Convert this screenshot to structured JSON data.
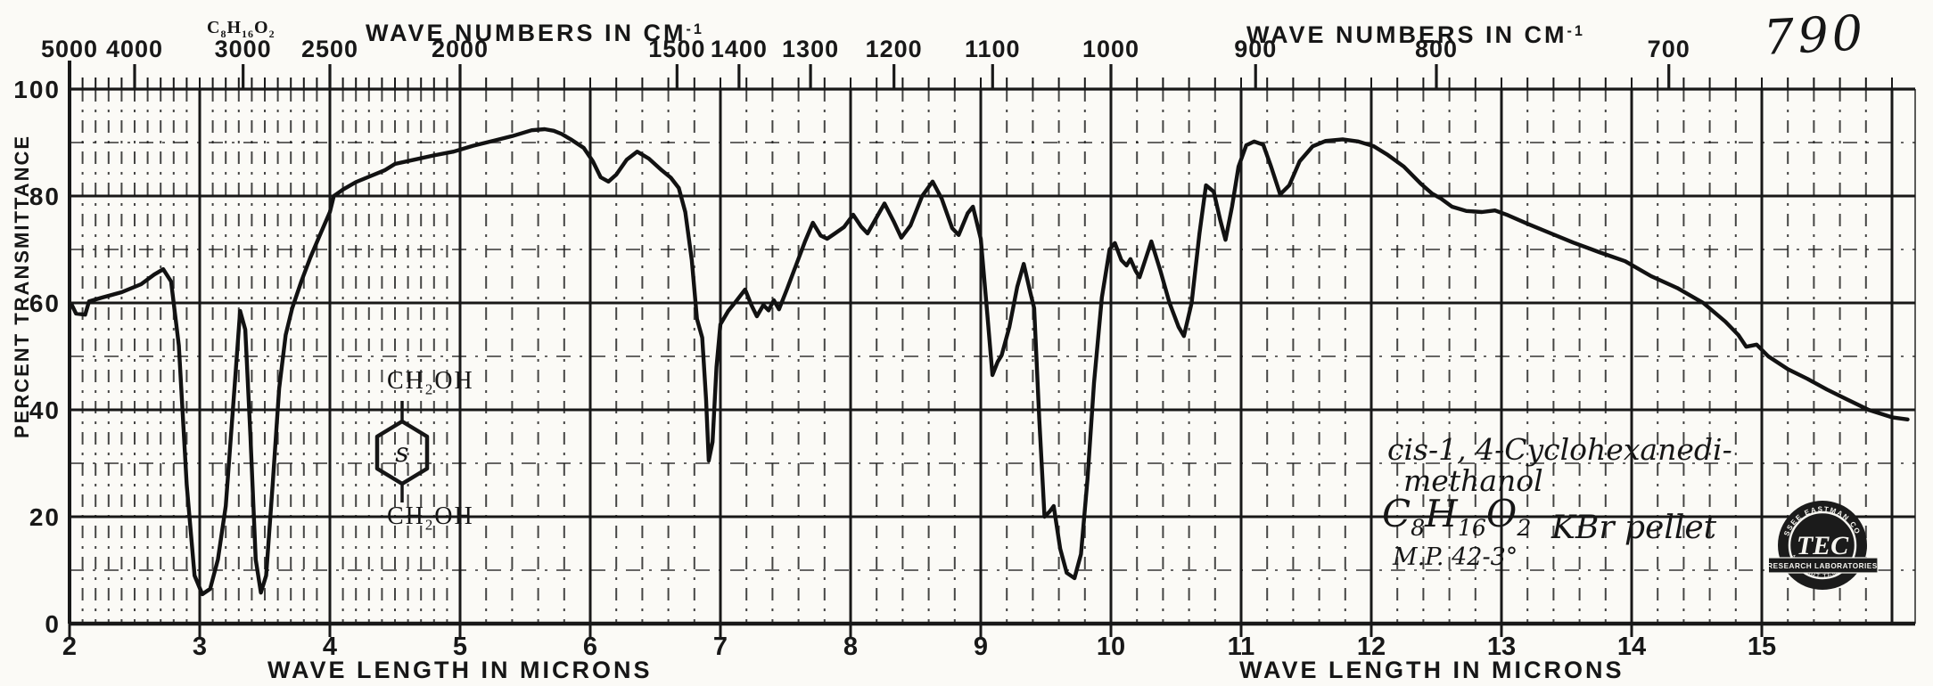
{
  "page": {
    "spectrum_number": "790",
    "formula_stamp": "C8H16O2"
  },
  "chart_data": {
    "type": "line",
    "x_axis_top": {
      "label": "WAVE NUMBERS IN CM",
      "label_sup": "-1",
      "tick_values_cm": [
        5000,
        4000,
        3000,
        2500,
        2000,
        1500,
        1400,
        1300,
        1200,
        1100,
        1000,
        900,
        800,
        700
      ]
    },
    "x_axis_bottom": {
      "label": "WAVE LENGTH IN MICRONS",
      "tick_values_microns": [
        2,
        3,
        4,
        5,
        6,
        7,
        8,
        9,
        10,
        11,
        12,
        13,
        14,
        15
      ],
      "range_microns": [
        2,
        16.2
      ]
    },
    "y_axis": {
      "label": "PERCENT TRANSMITTANCE",
      "tick_values": [
        100,
        80,
        60,
        40,
        20,
        0
      ],
      "range": [
        0,
        100
      ]
    },
    "grid": {
      "major_horizontal": [
        20,
        40,
        60,
        80
      ],
      "minor_horizontal": [
        10,
        30,
        50,
        70,
        90
      ],
      "vertical_major_microns": [
        3,
        4,
        5,
        6,
        7,
        8,
        9,
        10,
        11,
        12,
        13,
        14,
        15,
        16
      ]
    },
    "series": [
      {
        "name": "percent-transmittance",
        "points": [
          [
            2.02,
            59.5
          ],
          [
            2.05,
            58
          ],
          [
            2.12,
            57.8
          ],
          [
            2.15,
            60.3
          ],
          [
            2.25,
            61
          ],
          [
            2.4,
            62
          ],
          [
            2.55,
            63.5
          ],
          [
            2.65,
            65.3
          ],
          [
            2.72,
            66.3
          ],
          [
            2.78,
            64
          ],
          [
            2.84,
            52
          ],
          [
            2.9,
            26
          ],
          [
            2.96,
            9
          ],
          [
            3.02,
            5.5
          ],
          [
            3.08,
            6.5
          ],
          [
            3.14,
            12
          ],
          [
            3.2,
            22
          ],
          [
            3.27,
            45
          ],
          [
            3.31,
            58.5
          ],
          [
            3.35,
            55
          ],
          [
            3.39,
            35
          ],
          [
            3.43,
            12
          ],
          [
            3.47,
            5.8
          ],
          [
            3.51,
            9
          ],
          [
            3.56,
            26
          ],
          [
            3.61,
            44
          ],
          [
            3.66,
            54
          ],
          [
            3.71,
            59
          ],
          [
            3.78,
            64
          ],
          [
            3.85,
            68.5
          ],
          [
            3.92,
            72.5
          ],
          [
            4.0,
            77
          ],
          [
            4.03,
            80
          ],
          [
            4.1,
            81.2
          ],
          [
            4.2,
            82.6
          ],
          [
            4.3,
            83.6
          ],
          [
            4.42,
            84.8
          ],
          [
            4.5,
            86
          ],
          [
            4.65,
            86.8
          ],
          [
            4.8,
            87.6
          ],
          [
            4.95,
            88.3
          ],
          [
            5.1,
            89.4
          ],
          [
            5.25,
            90.3
          ],
          [
            5.4,
            91.2
          ],
          [
            5.55,
            92.3
          ],
          [
            5.65,
            92.5
          ],
          [
            5.72,
            92.2
          ],
          [
            5.78,
            91.6
          ],
          [
            5.85,
            90.6
          ],
          [
            5.95,
            89
          ],
          [
            6.02,
            86.5
          ],
          [
            6.08,
            83.5
          ],
          [
            6.14,
            82.7
          ],
          [
            6.2,
            84
          ],
          [
            6.28,
            86.8
          ],
          [
            6.36,
            88.3
          ],
          [
            6.45,
            87
          ],
          [
            6.55,
            84.8
          ],
          [
            6.62,
            83.4
          ],
          [
            6.68,
            81.5
          ],
          [
            6.73,
            77
          ],
          [
            6.78,
            68
          ],
          [
            6.82,
            57
          ],
          [
            6.86,
            53.5
          ],
          [
            6.89,
            42
          ],
          [
            6.91,
            30.5
          ],
          [
            6.94,
            34
          ],
          [
            6.97,
            48
          ],
          [
            7.0,
            56
          ],
          [
            7.06,
            58.5
          ],
          [
            7.12,
            60.3
          ],
          [
            7.19,
            62.5
          ],
          [
            7.24,
            59.5
          ],
          [
            7.28,
            57.5
          ],
          [
            7.33,
            59.6
          ],
          [
            7.37,
            58.6
          ],
          [
            7.41,
            60.5
          ],
          [
            7.45,
            58.8
          ],
          [
            7.51,
            62.5
          ],
          [
            7.58,
            67
          ],
          [
            7.65,
            71.5
          ],
          [
            7.71,
            75
          ],
          [
            7.77,
            72.6
          ],
          [
            7.82,
            72
          ],
          [
            7.88,
            73
          ],
          [
            7.95,
            74.2
          ],
          [
            8.02,
            76.5
          ],
          [
            8.08,
            74.3
          ],
          [
            8.13,
            73
          ],
          [
            8.2,
            76
          ],
          [
            8.26,
            78.6
          ],
          [
            8.33,
            75.3
          ],
          [
            8.39,
            72.2
          ],
          [
            8.46,
            74.5
          ],
          [
            8.55,
            80
          ],
          [
            8.63,
            82.7
          ],
          [
            8.7,
            79.5
          ],
          [
            8.78,
            74
          ],
          [
            8.83,
            72.7
          ],
          [
            8.9,
            76.8
          ],
          [
            8.94,
            78
          ],
          [
            9.0,
            72
          ],
          [
            9.05,
            58
          ],
          [
            9.09,
            46.5
          ],
          [
            9.13,
            49
          ],
          [
            9.16,
            50.2
          ],
          [
            9.22,
            55.5
          ],
          [
            9.28,
            63
          ],
          [
            9.33,
            67.3
          ],
          [
            9.38,
            62
          ],
          [
            9.41,
            59
          ],
          [
            9.45,
            38
          ],
          [
            9.49,
            20
          ],
          [
            9.53,
            21
          ],
          [
            9.56,
            22
          ],
          [
            9.61,
            14
          ],
          [
            9.66,
            9.5
          ],
          [
            9.72,
            8.5
          ],
          [
            9.77,
            13
          ],
          [
            9.82,
            27
          ],
          [
            9.87,
            45
          ],
          [
            9.93,
            61
          ],
          [
            9.99,
            70
          ],
          [
            10.03,
            71.2
          ],
          [
            10.08,
            68
          ],
          [
            10.12,
            67
          ],
          [
            10.15,
            68.2
          ],
          [
            10.19,
            66
          ],
          [
            10.22,
            64.8
          ],
          [
            10.27,
            68.5
          ],
          [
            10.31,
            71.5
          ],
          [
            10.38,
            66
          ],
          [
            10.45,
            60
          ],
          [
            10.52,
            55.5
          ],
          [
            10.56,
            53.8
          ],
          [
            10.62,
            60
          ],
          [
            10.68,
            73
          ],
          [
            10.73,
            82
          ],
          [
            10.79,
            80.8
          ],
          [
            10.84,
            75.5
          ],
          [
            10.88,
            71.8
          ],
          [
            10.93,
            78
          ],
          [
            10.98,
            85.5
          ],
          [
            11.04,
            89.5
          ],
          [
            11.1,
            90.2
          ],
          [
            11.17,
            89.6
          ],
          [
            11.23,
            85.5
          ],
          [
            11.3,
            80.3
          ],
          [
            11.37,
            82
          ],
          [
            11.45,
            86.5
          ],
          [
            11.55,
            89.3
          ],
          [
            11.65,
            90.3
          ],
          [
            11.78,
            90.6
          ],
          [
            11.9,
            90.2
          ],
          [
            12.02,
            89.3
          ],
          [
            12.12,
            87.8
          ],
          [
            12.25,
            85.5
          ],
          [
            12.38,
            82.3
          ],
          [
            12.47,
            80.4
          ],
          [
            12.53,
            79.6
          ],
          [
            12.62,
            78
          ],
          [
            12.73,
            77.2
          ],
          [
            12.85,
            77
          ],
          [
            12.95,
            77.3
          ],
          [
            13.05,
            76.4
          ],
          [
            13.2,
            74.8
          ],
          [
            13.38,
            73
          ],
          [
            13.55,
            71.3
          ],
          [
            13.75,
            69.5
          ],
          [
            13.95,
            67.8
          ],
          [
            14.15,
            65
          ],
          [
            14.35,
            62.8
          ],
          [
            14.55,
            60
          ],
          [
            14.72,
            56.5
          ],
          [
            14.82,
            54
          ],
          [
            14.88,
            51.8
          ],
          [
            14.96,
            52.2
          ],
          [
            15.05,
            50
          ],
          [
            15.2,
            47.6
          ],
          [
            15.35,
            45.8
          ],
          [
            15.5,
            43.8
          ],
          [
            15.65,
            42
          ],
          [
            15.82,
            40
          ],
          [
            16.0,
            38.6
          ],
          [
            16.12,
            38.2
          ]
        ]
      }
    ]
  },
  "annotations": {
    "compound_line1": "cis-1, 4-Cyclohexanedi-",
    "compound_line2": "methanol",
    "formula": "C8H16O2",
    "melting_point": "M.P. 42-3°",
    "technique": "KBr pellet",
    "structure": {
      "top_group": "CH2OH",
      "bottom_group": "CH2OH",
      "ring_label": "s"
    }
  },
  "logo": {
    "arc_top": "TENNESSEE EASTMAN COMPANY",
    "banner": "RESEARCH LABORATORIES",
    "arc_bottom": "KINGSPORT TENNESSEE",
    "monogram": "TEC"
  }
}
